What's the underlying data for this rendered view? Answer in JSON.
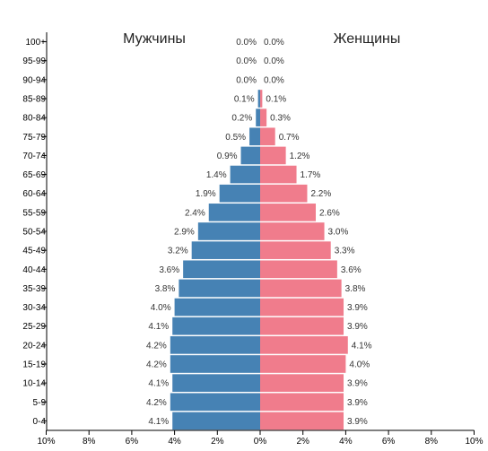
{
  "chart_data": {
    "type": "bar",
    "orientation": "horizontal",
    "subtype": "population-pyramid",
    "left_title": "Мужчины",
    "right_title": "Женщины",
    "categories": [
      "0-4",
      "5-9",
      "10-14",
      "15-19",
      "20-24",
      "25-29",
      "30-34",
      "35-39",
      "40-44",
      "45-49",
      "50-54",
      "55-59",
      "60-64",
      "65-69",
      "70-74",
      "75-79",
      "80-84",
      "85-89",
      "90-94",
      "95-99",
      "100+"
    ],
    "series": [
      {
        "name": "Мужчины",
        "color": "#4682b4",
        "values": [
          4.1,
          4.2,
          4.1,
          4.2,
          4.2,
          4.1,
          4.0,
          3.8,
          3.6,
          3.2,
          2.9,
          2.4,
          1.9,
          1.4,
          0.9,
          0.5,
          0.2,
          0.1,
          0.0,
          0.0,
          0.0
        ],
        "labels": [
          "4.1%",
          "4.2%",
          "4.1%",
          "4.2%",
          "4.2%",
          "4.1%",
          "4.0%",
          "3.8%",
          "3.6%",
          "3.2%",
          "2.9%",
          "2.4%",
          "1.9%",
          "1.4%",
          "0.9%",
          "0.5%",
          "0.2%",
          "0.1%",
          "0.0%",
          "0.0%",
          "0.0%"
        ]
      },
      {
        "name": "Женщины",
        "color": "#f07c8c",
        "values": [
          3.9,
          3.9,
          3.9,
          4.0,
          4.1,
          3.9,
          3.9,
          3.8,
          3.6,
          3.3,
          3.0,
          2.6,
          2.2,
          1.7,
          1.2,
          0.7,
          0.3,
          0.1,
          0.0,
          0.0,
          0.0
        ],
        "labels": [
          "3.9%",
          "3.9%",
          "3.9%",
          "4.0%",
          "4.1%",
          "3.9%",
          "3.9%",
          "3.8%",
          "3.6%",
          "3.3%",
          "3.0%",
          "2.6%",
          "2.2%",
          "1.7%",
          "1.2%",
          "0.7%",
          "0.3%",
          "0.1%",
          "0.0%",
          "0.0%",
          "0.0%"
        ]
      }
    ],
    "x_ticks": [
      "10%",
      "8%",
      "6%",
      "4%",
      "2%",
      "0%",
      "2%",
      "4%",
      "6%",
      "8%",
      "10%"
    ],
    "xlim": [
      -10,
      10
    ],
    "grid": false
  }
}
